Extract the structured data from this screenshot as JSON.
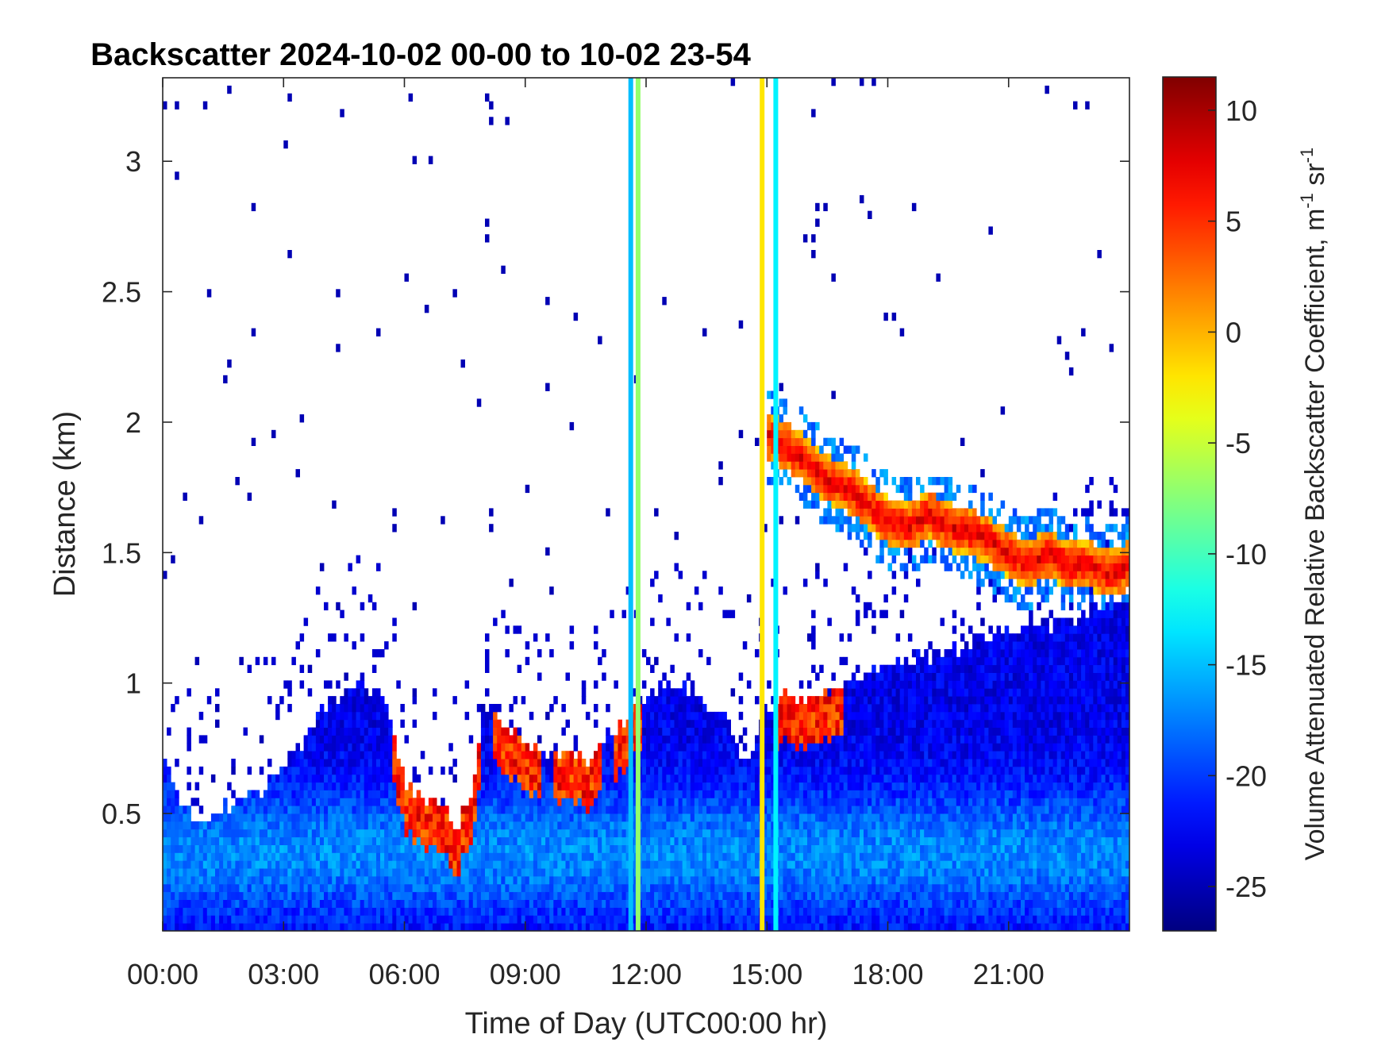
{
  "chart_data": {
    "type": "heatmap",
    "title": "Backscatter 2024-10-02 00-00 to 10-02 23-54",
    "xlabel": "Time of Day (UTC00:00 hr)",
    "ylabel": "Distance (km)",
    "colorbar_label": "Volume Attenuated Relative Backscatter Coefficient, m",
    "colorbar_units_suffix": "sr",
    "colorbar_units_exp": "-1",
    "colormap": "jet",
    "xlim": [
      0,
      24
    ],
    "ylim": [
      0.05,
      3.32
    ],
    "clim": [
      -27,
      11.5
    ],
    "x_ticks": [
      0,
      3,
      6,
      9,
      12,
      15,
      18,
      21
    ],
    "x_tick_labels": [
      "00:00",
      "03:00",
      "06:00",
      "09:00",
      "12:00",
      "15:00",
      "18:00",
      "21:00"
    ],
    "y_ticks": [
      0.5,
      1,
      1.5,
      2,
      2.5,
      3
    ],
    "y_tick_labels": [
      "0.5",
      "1",
      "1.5",
      "2",
      "2.5",
      "3"
    ],
    "colorbar_ticks": [
      -25,
      -20,
      -15,
      -10,
      -5,
      0,
      5,
      10
    ],
    "colorbar_tick_labels": [
      "-25",
      "-20",
      "-15",
      "-10",
      "-5",
      "0",
      "5",
      "10"
    ],
    "layers": [
      {
        "name": "boundary layer top",
        "hours": [
          0,
          0.3,
          0.6,
          1.0,
          1.5,
          2.0,
          2.5,
          3.0,
          3.5,
          4.0,
          4.5,
          5.0,
          5.5,
          6.0,
          6.5,
          7.0,
          7.3,
          7.6,
          8.0,
          8.5,
          9.0,
          9.5,
          10.0,
          10.5,
          11.0,
          11.5,
          12.0,
          12.5,
          13.0,
          13.5,
          14.0,
          14.5,
          15.0,
          15.5,
          16.0,
          16.5,
          17.0,
          17.5,
          18.0,
          18.5,
          19.0,
          19.5,
          20.0,
          20.5,
          21.0,
          21.5,
          22.0,
          22.5,
          23.0,
          23.5,
          24.0
        ],
        "top_km": [
          0.72,
          0.6,
          0.5,
          0.48,
          0.52,
          0.55,
          0.6,
          0.68,
          0.78,
          0.9,
          0.96,
          0.98,
          0.96,
          0.62,
          0.55,
          0.5,
          0.45,
          0.55,
          0.9,
          0.85,
          0.78,
          0.72,
          0.75,
          0.7,
          0.8,
          0.85,
          0.95,
          1.0,
          0.98,
          0.92,
          0.85,
          0.7,
          0.9,
          0.95,
          0.92,
          0.95,
          1.0,
          1.05,
          1.05,
          1.08,
          1.1,
          1.12,
          1.15,
          1.18,
          1.2,
          1.22,
          1.22,
          1.25,
          1.28,
          1.3,
          1.3
        ]
      },
      {
        "name": "elevated cloud layer",
        "hours": [
          15.0,
          15.5,
          16.0,
          16.5,
          17.0,
          17.5,
          18.0,
          18.5,
          19.0,
          19.5,
          20.0,
          20.5,
          21.0,
          21.5,
          22.0,
          22.5,
          23.0,
          23.5,
          24.0
        ],
        "center_km": [
          1.95,
          1.9,
          1.85,
          1.78,
          1.75,
          1.68,
          1.62,
          1.6,
          1.65,
          1.6,
          1.58,
          1.55,
          1.5,
          1.45,
          1.5,
          1.45,
          1.45,
          1.42,
          1.45
        ],
        "peak_value": 8
      },
      {
        "name": "aerosol peaks near BL top",
        "hours": [
          6.0,
          6.5,
          7.0,
          7.5,
          8.5,
          9.0,
          10.0,
          10.5,
          11.5,
          15.5,
          16.0,
          16.5
        ],
        "peak_value": 8
      }
    ],
    "vertical_stripes": [
      {
        "hour": 11.62,
        "value": -15
      },
      {
        "hour": 11.8,
        "value": -7
      },
      {
        "hour": 14.88,
        "value": -2
      },
      {
        "hour": 15.22,
        "value": -13
      }
    ]
  }
}
